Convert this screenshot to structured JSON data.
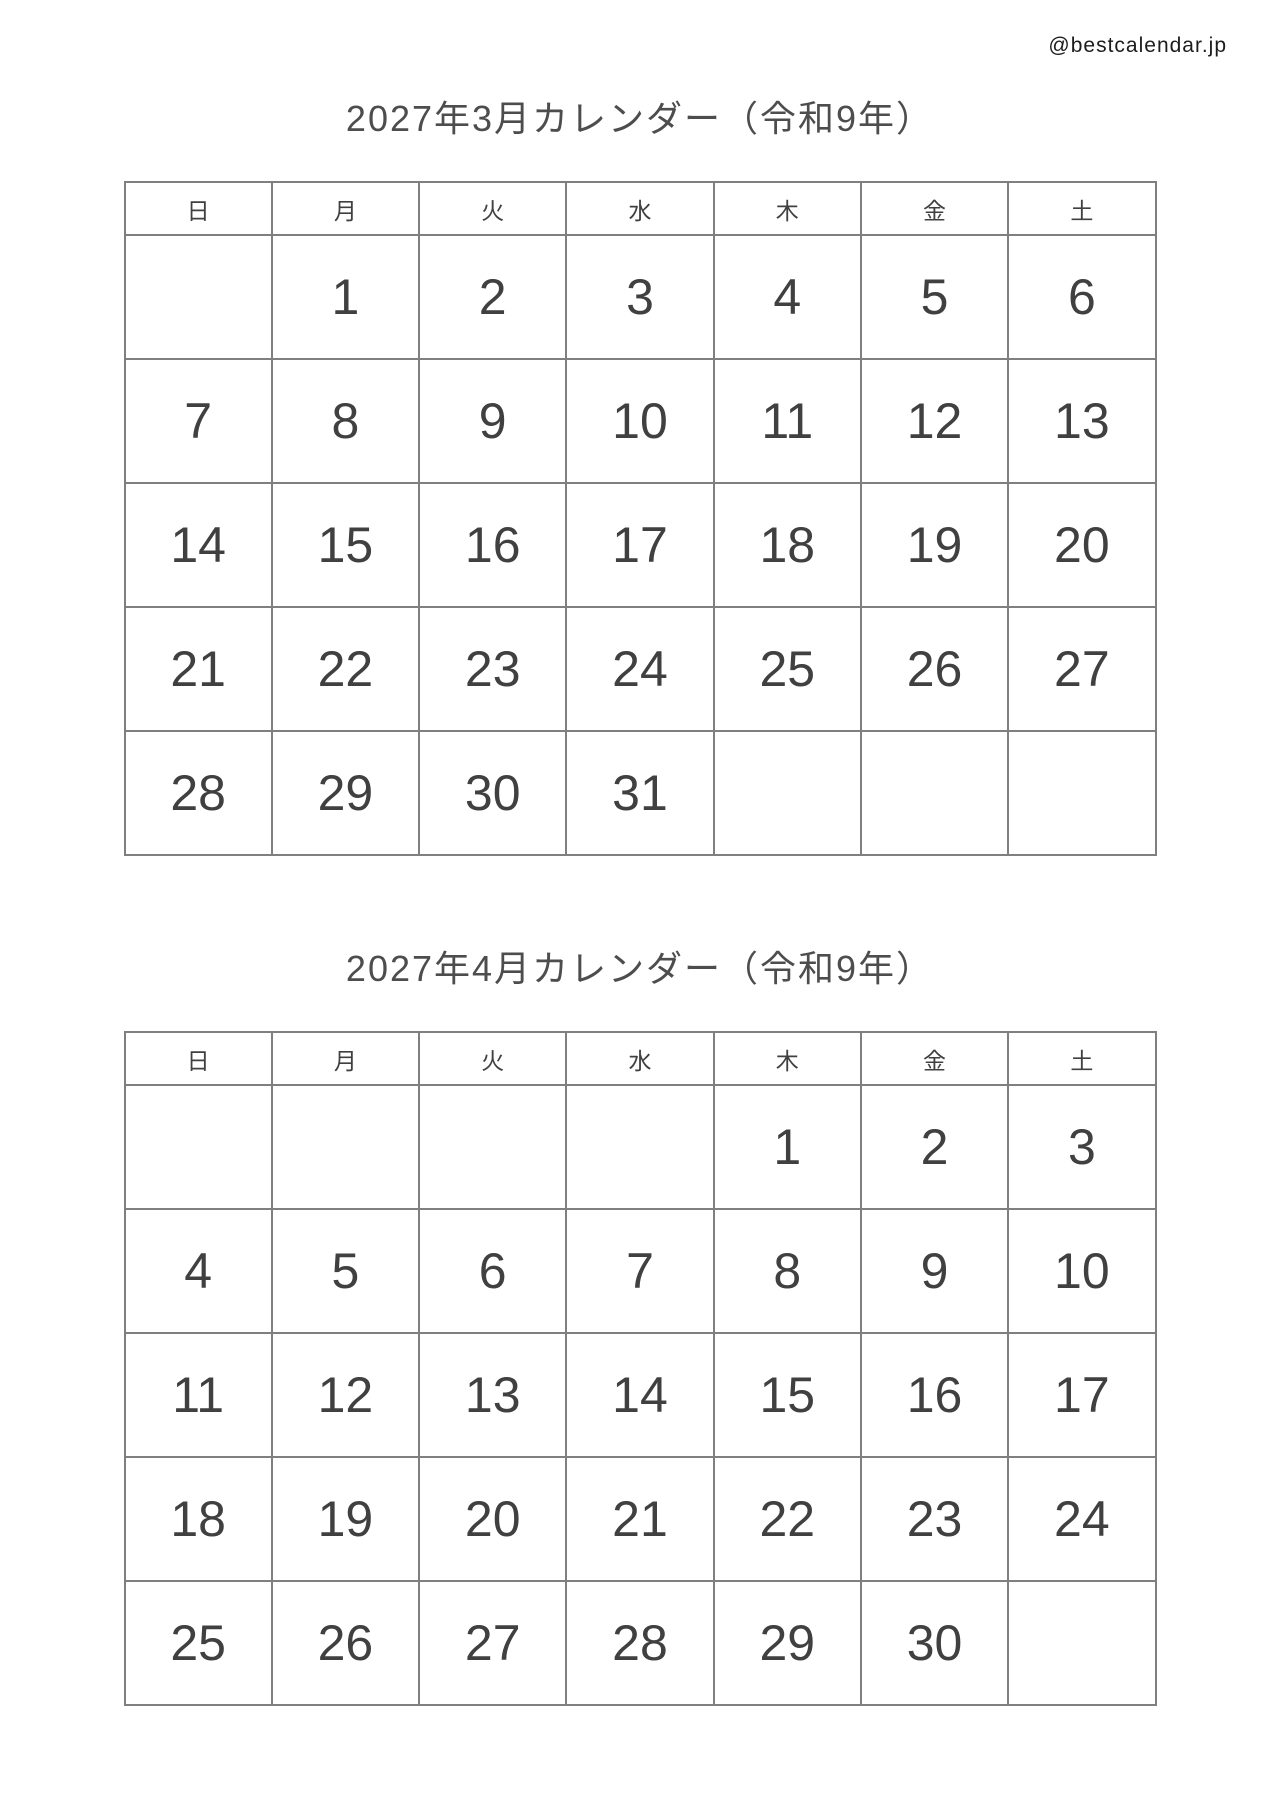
{
  "page": {
    "watermark": "@bestcalendar.jp"
  },
  "colors": {
    "sunday_holiday_red": "#c7302b",
    "saturday_blue": "#4d9ce8",
    "weekday_text": "#404040",
    "title_text": "#4d4d4d",
    "grid_border": "#7f7f7f",
    "background": "#ffffff"
  },
  "weekday_headers": [
    {
      "label": "日",
      "role": "sunday"
    },
    {
      "label": "月",
      "role": "weekday"
    },
    {
      "label": "火",
      "role": "weekday"
    },
    {
      "label": "水",
      "role": "weekday"
    },
    {
      "label": "木",
      "role": "weekday"
    },
    {
      "label": "金",
      "role": "weekday"
    },
    {
      "label": "土",
      "role": "saturday"
    }
  ],
  "calendars": [
    {
      "title": "2027年3月カレンダー（令和9年）",
      "weeks": [
        [
          {
            "day": "",
            "role": "empty"
          },
          {
            "day": "1",
            "role": "weekday"
          },
          {
            "day": "2",
            "role": "weekday"
          },
          {
            "day": "3",
            "role": "weekday"
          },
          {
            "day": "4",
            "role": "weekday"
          },
          {
            "day": "5",
            "role": "weekday"
          },
          {
            "day": "6",
            "role": "saturday"
          }
        ],
        [
          {
            "day": "7",
            "role": "sunday"
          },
          {
            "day": "8",
            "role": "weekday"
          },
          {
            "day": "9",
            "role": "weekday"
          },
          {
            "day": "10",
            "role": "weekday"
          },
          {
            "day": "11",
            "role": "weekday"
          },
          {
            "day": "12",
            "role": "weekday"
          },
          {
            "day": "13",
            "role": "saturday"
          }
        ],
        [
          {
            "day": "14",
            "role": "sunday"
          },
          {
            "day": "15",
            "role": "weekday"
          },
          {
            "day": "16",
            "role": "weekday"
          },
          {
            "day": "17",
            "role": "weekday"
          },
          {
            "day": "18",
            "role": "weekday"
          },
          {
            "day": "19",
            "role": "weekday"
          },
          {
            "day": "20",
            "role": "saturday"
          }
        ],
        [
          {
            "day": "21",
            "role": "sunday"
          },
          {
            "day": "22",
            "role": "holiday"
          },
          {
            "day": "23",
            "role": "weekday"
          },
          {
            "day": "24",
            "role": "weekday"
          },
          {
            "day": "25",
            "role": "weekday"
          },
          {
            "day": "26",
            "role": "weekday"
          },
          {
            "day": "27",
            "role": "saturday"
          }
        ],
        [
          {
            "day": "28",
            "role": "sunday"
          },
          {
            "day": "29",
            "role": "weekday"
          },
          {
            "day": "30",
            "role": "weekday"
          },
          {
            "day": "31",
            "role": "weekday"
          },
          {
            "day": "",
            "role": "empty"
          },
          {
            "day": "",
            "role": "empty"
          },
          {
            "day": "",
            "role": "empty"
          }
        ]
      ]
    },
    {
      "title": "2027年4月カレンダー（令和9年）",
      "weeks": [
        [
          {
            "day": "",
            "role": "empty"
          },
          {
            "day": "",
            "role": "empty"
          },
          {
            "day": "",
            "role": "empty"
          },
          {
            "day": "",
            "role": "empty"
          },
          {
            "day": "1",
            "role": "weekday"
          },
          {
            "day": "2",
            "role": "weekday"
          },
          {
            "day": "3",
            "role": "saturday"
          }
        ],
        [
          {
            "day": "4",
            "role": "sunday"
          },
          {
            "day": "5",
            "role": "weekday"
          },
          {
            "day": "6",
            "role": "weekday"
          },
          {
            "day": "7",
            "role": "weekday"
          },
          {
            "day": "8",
            "role": "weekday"
          },
          {
            "day": "9",
            "role": "weekday"
          },
          {
            "day": "10",
            "role": "saturday"
          }
        ],
        [
          {
            "day": "11",
            "role": "sunday"
          },
          {
            "day": "12",
            "role": "weekday"
          },
          {
            "day": "13",
            "role": "weekday"
          },
          {
            "day": "14",
            "role": "weekday"
          },
          {
            "day": "15",
            "role": "weekday"
          },
          {
            "day": "16",
            "role": "weekday"
          },
          {
            "day": "17",
            "role": "saturday"
          }
        ],
        [
          {
            "day": "18",
            "role": "sunday"
          },
          {
            "day": "19",
            "role": "weekday"
          },
          {
            "day": "20",
            "role": "weekday"
          },
          {
            "day": "21",
            "role": "weekday"
          },
          {
            "day": "22",
            "role": "weekday"
          },
          {
            "day": "23",
            "role": "weekday"
          },
          {
            "day": "24",
            "role": "saturday"
          }
        ],
        [
          {
            "day": "25",
            "role": "sunday"
          },
          {
            "day": "26",
            "role": "weekday"
          },
          {
            "day": "27",
            "role": "weekday"
          },
          {
            "day": "28",
            "role": "weekday"
          },
          {
            "day": "29",
            "role": "holiday"
          },
          {
            "day": "30",
            "role": "weekday"
          },
          {
            "day": "",
            "role": "empty"
          }
        ]
      ]
    }
  ]
}
